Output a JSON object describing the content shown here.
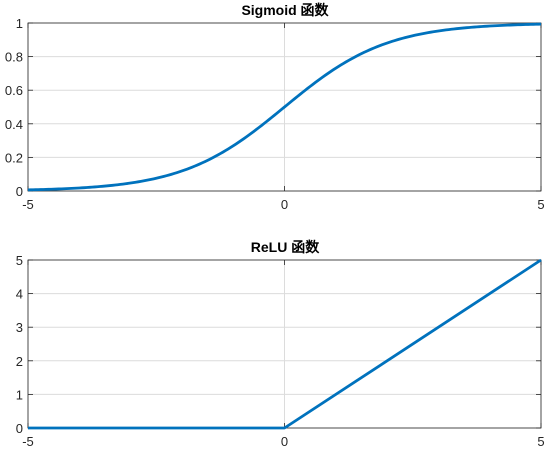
{
  "colors": {
    "line": "#0072BD",
    "axis": "#262626",
    "grid": "#dcdcdc",
    "background": "#ffffff"
  },
  "chart_data": [
    {
      "type": "line",
      "title": "Sigmoid 函数",
      "xlabel": "",
      "ylabel": "",
      "xlim": [
        -5,
        5
      ],
      "ylim": [
        0,
        1
      ],
      "xticks": [
        -5,
        0,
        5
      ],
      "xtick_labels": [
        "-5",
        "0",
        "5"
      ],
      "yticks": [
        0,
        0.2,
        0.4,
        0.6,
        0.8,
        1
      ],
      "ytick_labels": [
        "0",
        "0.2",
        "0.4",
        "0.6",
        "0.8",
        "1"
      ],
      "grid": true,
      "series": [
        {
          "x": [
            -5,
            -4.5,
            -4,
            -3.5,
            -3,
            -2.5,
            -2,
            -1.5,
            -1,
            -0.5,
            0,
            0.5,
            1,
            1.5,
            2,
            2.5,
            3,
            3.5,
            4,
            4.5,
            5
          ],
          "values": [
            0.007,
            0.011,
            0.018,
            0.029,
            0.047,
            0.076,
            0.119,
            0.182,
            0.269,
            0.378,
            0.5,
            0.622,
            0.731,
            0.818,
            0.881,
            0.924,
            0.953,
            0.971,
            0.982,
            0.989,
            0.993
          ]
        }
      ]
    },
    {
      "type": "line",
      "title": "ReLU 函数",
      "xlabel": "",
      "ylabel": "",
      "xlim": [
        -5,
        5
      ],
      "ylim": [
        0,
        5
      ],
      "xticks": [
        -5,
        0,
        5
      ],
      "xtick_labels": [
        "-5",
        "0",
        "5"
      ],
      "yticks": [
        0,
        1,
        2,
        3,
        4,
        5
      ],
      "ytick_labels": [
        "0",
        "1",
        "2",
        "3",
        "4",
        "5"
      ],
      "grid": true,
      "series": [
        {
          "x": [
            -5,
            0,
            5
          ],
          "values": [
            0,
            0,
            5
          ]
        }
      ]
    }
  ]
}
